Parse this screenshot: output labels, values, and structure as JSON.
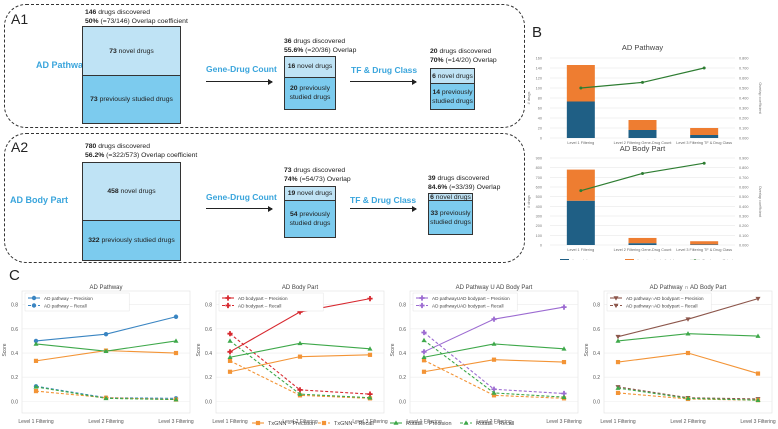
{
  "panel_labels": {
    "a1": "A1",
    "a2": "A2",
    "b": "B",
    "c": "C"
  },
  "panel_a": {
    "rows": [
      {
        "label": "AD Pathway",
        "steps": [
          "Gene-Drug Count",
          "TF & Drug Class"
        ],
        "stages": [
          {
            "discovered": "146",
            "discovered_text": " drugs discovered",
            "pct": "50%",
            "overlap_text": " (=73/146) Overlap coefficient",
            "novel": "73",
            "novel_text": " novel drugs",
            "prev": "73",
            "prev_text": " previously studied drugs"
          },
          {
            "discovered": "36",
            "discovered_text": " drugs discovered",
            "pct": "55.6%",
            "overlap_text": " (=20/36) Overlap",
            "novel": "16",
            "novel_text": " novel drugs",
            "prev": "20",
            "prev_text": " previously studied drugs"
          },
          {
            "discovered": "20",
            "discovered_text": " drugs discovered",
            "pct": "70%",
            "overlap_text": " (=14/20) Overlap",
            "novel": "6",
            "novel_text": " novel drugs",
            "prev": "14",
            "prev_text": " previously studied drugs"
          }
        ]
      },
      {
        "label": "AD Body Part",
        "steps": [
          "Gene-Drug Count",
          "TF & Drug Class"
        ],
        "stages": [
          {
            "discovered": "780",
            "discovered_text": " drugs discovered",
            "pct": "56.2%",
            "overlap_text": " (=322/573) Overlap coefficient",
            "novel": "458",
            "novel_text": " novel drugs",
            "prev": "322",
            "prev_text": " previously studied drugs"
          },
          {
            "discovered": "73",
            "discovered_text": " drugs discovered",
            "pct": "74%",
            "overlap_text": " (=54/73) Overlap",
            "novel": "19",
            "novel_text": " novel drugs",
            "prev": "54",
            "prev_text": " previously studied drugs"
          },
          {
            "discovered": "39",
            "discovered_text": " drugs discovered",
            "pct": "84.6%",
            "overlap_text": " (=33/39) Overlap",
            "novel": "6",
            "novel_text": " novel drugs",
            "prev": "33",
            "prev_text": " previously studied drugs"
          }
        ]
      }
    ]
  },
  "colors": {
    "label_blue": "#3aa5dc",
    "novel_fill": "#bfe3f5",
    "prev_fill": "#7ccbee",
    "bar_novel": "#1f5f85",
    "bar_prev": "#ee7d31",
    "overlap_line": "#2e7d32",
    "blue": "#3a85c2",
    "orange": "#f39436",
    "green": "#3ea84a",
    "red": "#d7282f",
    "purple": "#9c6bd1",
    "brown": "#8c564b"
  },
  "chart_data": [
    {
      "id": "b1",
      "type": "bar",
      "title": "AD Pathway",
      "categories": [
        "Level 1 Filtering",
        "Level 2 Filtering Gene-Drug Count",
        "Level 3 Filtering TF & Drug Class"
      ],
      "series": [
        {
          "name": "# novel drugs",
          "values": [
            73,
            16,
            6
          ]
        },
        {
          "name": "# previously studied drugs",
          "values": [
            73,
            20,
            14
          ]
        },
        {
          "name": "Overlap coefficient",
          "axis": "right",
          "type": "line",
          "values": [
            0.5,
            0.556,
            0.7
          ]
        }
      ],
      "ylabel": "# drugs",
      "y2label": "Overlap coefficient",
      "yticks": [
        "0",
        "20",
        "40",
        "60",
        "80",
        "100",
        "120",
        "140",
        "160"
      ],
      "ylim": [
        0,
        160
      ],
      "y2ticks": [
        "0.000",
        "0.100",
        "0.200",
        "0.300",
        "0.400",
        "0.500",
        "0.600",
        "0.700",
        "0.800"
      ],
      "y2lim": [
        0,
        0.8
      ]
    },
    {
      "id": "b2",
      "type": "bar",
      "title": "AD Body Part",
      "categories": [
        "Level 1 Filtering",
        "Level 2 Filtering Gene-Drug Count",
        "Level 3 Filtering TF & Drug Class"
      ],
      "series": [
        {
          "name": "# novel drugs",
          "values": [
            458,
            19,
            6
          ]
        },
        {
          "name": "# previously studied drugs",
          "values": [
            322,
            54,
            33
          ]
        },
        {
          "name": "Overlap coefficient",
          "axis": "right",
          "type": "line",
          "values": [
            0.562,
            0.74,
            0.846
          ]
        }
      ],
      "ylabel": "# drugs",
      "y2label": "Overlap coefficient",
      "yticks": [
        "0",
        "100",
        "200",
        "300",
        "400",
        "500",
        "600",
        "700",
        "800",
        "900"
      ],
      "ylim": [
        0,
        900
      ],
      "y2ticks": [
        "0.000",
        "0.100",
        "0.200",
        "0.300",
        "0.400",
        "0.500",
        "0.600",
        "0.700",
        "0.800",
        "0.900"
      ],
      "y2lim": [
        0,
        0.9
      ],
      "legend": [
        "# novel drugs",
        "# previously studied drugs",
        "Overlap coefficient"
      ],
      "legend_position": "bottom"
    },
    {
      "id": "c1",
      "type": "line",
      "title": "AD Pathway",
      "x": [
        "Level 1 Filtering",
        "Level 2 Filtering",
        "Level 3 Filtering"
      ],
      "ylabel": "Score",
      "yticks": [
        "0.0",
        "0.2",
        "0.4",
        "0.6",
        "0.8"
      ],
      "ylim": [
        -0.03,
        0.88
      ],
      "series": [
        {
          "name": "AD pathway – Precision",
          "color": "blue",
          "dash": false,
          "marker": "circle",
          "values": [
            0.5,
            0.556,
            0.7
          ]
        },
        {
          "name": "AD pathway – Recall",
          "color": "blue",
          "dash": true,
          "marker": "circle",
          "values": [
            0.125,
            0.03,
            0.025
          ]
        },
        {
          "name": "TxGNN – Precision",
          "color": "orange",
          "dash": false,
          "marker": "square",
          "values": [
            0.335,
            0.42,
            0.4
          ]
        },
        {
          "name": "TxGNN – Recall",
          "color": "orange",
          "dash": true,
          "marker": "square",
          "values": [
            0.085,
            0.03,
            0.015
          ]
        },
        {
          "name": "RotatE – Precision",
          "color": "green",
          "dash": false,
          "marker": "triangle",
          "values": [
            0.475,
            0.415,
            0.5
          ]
        },
        {
          "name": "RotatE – Recall",
          "color": "green",
          "dash": true,
          "marker": "triangle",
          "values": [
            0.12,
            0.025,
            0.015
          ]
        }
      ],
      "legend": [
        "AD pathway – Precision",
        "AD pathway – Recall"
      ]
    },
    {
      "id": "c2",
      "type": "line",
      "title": "AD Body Part",
      "x": [
        "Level 1 Filtering",
        "Level 2 Filtering",
        "Level 3 Filtering"
      ],
      "ylabel": "Score",
      "yticks": [
        "0.0",
        "0.2",
        "0.4",
        "0.6",
        "0.8"
      ],
      "ylim": [
        -0.03,
        0.88
      ],
      "series": [
        {
          "name": "AD bodypart – Precision",
          "color": "red",
          "dash": false,
          "marker": "plus",
          "values": [
            0.41,
            0.74,
            0.85
          ]
        },
        {
          "name": "AD bodypart – Recall",
          "color": "red",
          "dash": true,
          "marker": "plus",
          "values": [
            0.56,
            0.095,
            0.06
          ]
        },
        {
          "name": "TxGNN – Precision",
          "color": "orange",
          "dash": false,
          "marker": "square",
          "values": [
            0.245,
            0.37,
            0.385
          ]
        },
        {
          "name": "TxGNN – Recall",
          "color": "orange",
          "dash": true,
          "marker": "square",
          "values": [
            0.335,
            0.05,
            0.025
          ]
        },
        {
          "name": "RotatE – Precision",
          "color": "green",
          "dash": false,
          "marker": "triangle",
          "values": [
            0.365,
            0.48,
            0.435
          ]
        },
        {
          "name": "RotatE – Recall",
          "color": "green",
          "dash": true,
          "marker": "triangle",
          "values": [
            0.5,
            0.06,
            0.03
          ]
        }
      ],
      "legend": [
        "AD bodypart – Precision",
        "AD bodypart – Recall"
      ]
    },
    {
      "id": "c3",
      "type": "line",
      "title": "AD Pathway U AD Body Part",
      "x": [
        "Level 1 Filtering",
        "Level 2 Filtering",
        "Level 3 Filtering"
      ],
      "ylabel": "Score",
      "yticks": [
        "0.0",
        "0.2",
        "0.4",
        "0.6",
        "0.8"
      ],
      "ylim": [
        -0.03,
        0.88
      ],
      "series": [
        {
          "name": "AD pathwayUAD bodypart – Precision",
          "color": "purple",
          "dash": false,
          "marker": "plus",
          "values": [
            0.41,
            0.68,
            0.78
          ]
        },
        {
          "name": "AD pathwayUAD bodypart – Recall",
          "color": "purple",
          "dash": true,
          "marker": "plus",
          "values": [
            0.57,
            0.1,
            0.065
          ]
        },
        {
          "name": "TxGNN – Precision",
          "color": "orange",
          "dash": false,
          "marker": "square",
          "values": [
            0.245,
            0.345,
            0.325
          ]
        },
        {
          "name": "TxGNN – Recall",
          "color": "orange",
          "dash": true,
          "marker": "square",
          "values": [
            0.34,
            0.05,
            0.025
          ]
        },
        {
          "name": "RotatE – Precision",
          "color": "green",
          "dash": false,
          "marker": "triangle",
          "values": [
            0.365,
            0.475,
            0.435
          ]
        },
        {
          "name": "RotatE – Recall",
          "color": "green",
          "dash": true,
          "marker": "triangle",
          "values": [
            0.505,
            0.07,
            0.035
          ]
        }
      ],
      "legend": [
        "AD pathwayUAD bodypart – Precision",
        "AD pathwayUAD bodypart – Recall"
      ]
    },
    {
      "id": "c4",
      "type": "line",
      "title": "AD Pathway ∩ AD Body Part",
      "x": [
        "Level 1 Filtering",
        "Level 2 Filtering",
        "Level 3 Filtering"
      ],
      "ylabel": "Score",
      "yticks": [
        "0.0",
        "0.2",
        "0.4",
        "0.6",
        "0.8"
      ],
      "ylim": [
        -0.03,
        0.88
      ],
      "series": [
        {
          "name": "AD pathway∩AD bodypart – Precision",
          "color": "brown",
          "dash": false,
          "marker": "tri-down",
          "values": [
            0.535,
            0.68,
            0.85
          ]
        },
        {
          "name": "AD pathway∩AD bodypart – Recall",
          "color": "brown",
          "dash": true,
          "marker": "tri-down",
          "values": [
            0.12,
            0.03,
            0.02
          ]
        },
        {
          "name": "TxGNN – Precision",
          "color": "orange",
          "dash": false,
          "marker": "square",
          "values": [
            0.325,
            0.4,
            0.23
          ]
        },
        {
          "name": "TxGNN – Recall",
          "color": "orange",
          "dash": true,
          "marker": "square",
          "values": [
            0.07,
            0.02,
            0.01
          ]
        },
        {
          "name": "RotatE – Precision",
          "color": "green",
          "dash": false,
          "marker": "triangle",
          "values": [
            0.5,
            0.56,
            0.54
          ]
        },
        {
          "name": "RotatE – Recall",
          "color": "green",
          "dash": true,
          "marker": "triangle",
          "values": [
            0.11,
            0.025,
            0.01
          ]
        }
      ],
      "legend": [
        "AD pathway∩AD bodypart – Precision",
        "AD pathway∩AD bodypart – Recall"
      ]
    }
  ],
  "shared_legend": [
    {
      "name": "TxGNN – Precision",
      "color": "orange",
      "dash": false,
      "marker": "square"
    },
    {
      "name": "TxGNN – Recall",
      "color": "orange",
      "dash": true,
      "marker": "square"
    },
    {
      "name": "RotatE – Precision",
      "color": "green",
      "dash": false,
      "marker": "triangle"
    },
    {
      "name": "RotatE – Recall",
      "color": "green",
      "dash": true,
      "marker": "triangle"
    }
  ]
}
